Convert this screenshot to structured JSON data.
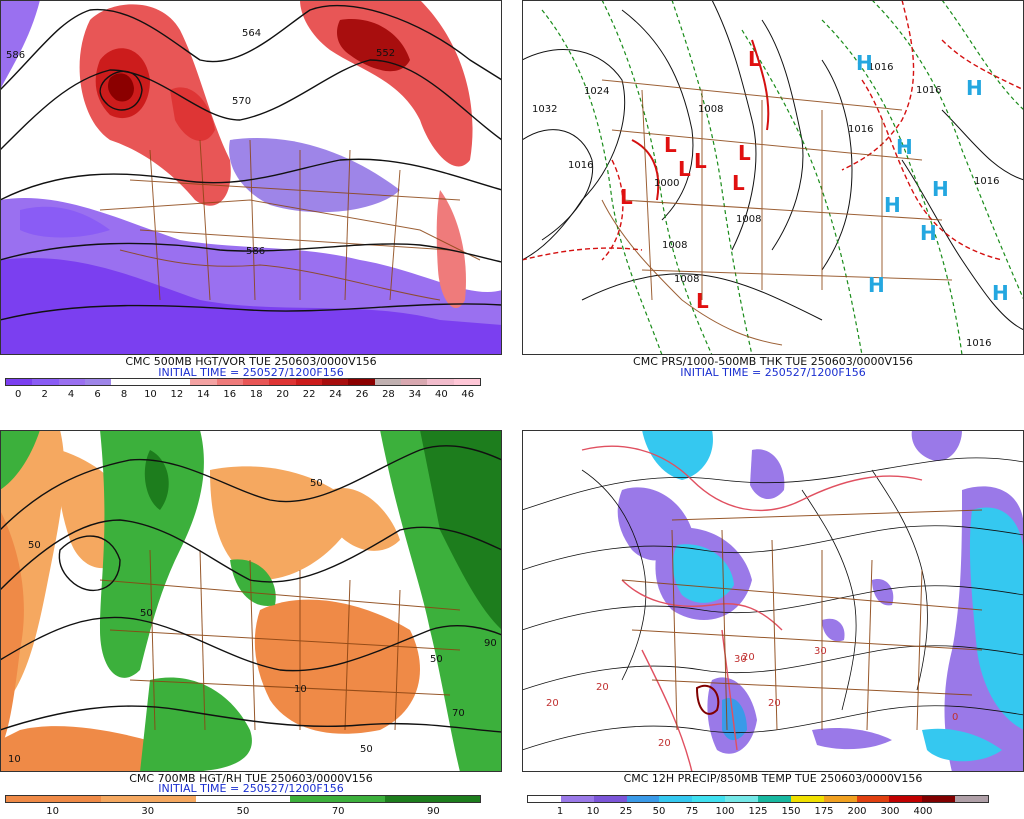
{
  "panels": {
    "p1": {
      "label": "CMC 500MB HGT/VOR TUE 250603/0000V156",
      "init": "INITIAL TIME = 250527/1200F156",
      "contour_labels": [
        "586",
        "564",
        "552",
        "570",
        "586"
      ],
      "colorbar": {
        "colors": [
          "#7b3ff0",
          "#8a5cf5",
          "#9a70f0",
          "#9e85e8",
          "#ffffff",
          "#ffffff",
          "#ffffff",
          "#f4a3a3",
          "#ef7b7b",
          "#e85656",
          "#de3535",
          "#cc1c1c",
          "#a80e0e",
          "#8b0000",
          "#c0b0b0",
          "#d8a8b0",
          "#f2bccc",
          "#ffc7d7"
        ],
        "ticks": [
          "0",
          "2",
          "4",
          "6",
          "8",
          "10",
          "12",
          "14",
          "16",
          "18",
          "20",
          "22",
          "24",
          "26",
          "28",
          "34",
          "40",
          "46"
        ]
      }
    },
    "p2": {
      "label": "CMC PRS/1000-500MB THK TUE 250603/0000V156",
      "init": "INITIAL TIME = 250527/1200F156",
      "pressure_labels": [
        "1032",
        "1024",
        "1016",
        "1008",
        "1000",
        "1008",
        "1008",
        "1016",
        "1016",
        "1016",
        "1016",
        "1016",
        "1008"
      ],
      "H_symbols": [
        "H",
        "H",
        "H",
        "H",
        "H",
        "H",
        "H",
        "H"
      ],
      "L_symbols": [
        "L",
        "L",
        "L",
        "L",
        "L",
        "L",
        "L",
        "L"
      ]
    },
    "p3": {
      "label": "CMC 700MB HGT/RH TUE 250603/0000V156",
      "init": "INITIAL TIME = 250527/1200F156",
      "contour_labels": [
        "50",
        "50",
        "50",
        "90",
        "50",
        "10",
        "70",
        "50",
        "10"
      ],
      "colorbar": {
        "colors": [
          "#ef8a47",
          "#ef8a47",
          "#f5a860",
          "#f5a860",
          "#ffffff",
          "#ffffff",
          "#3cb03c",
          "#3cb03c",
          "#1d7d1d",
          "#1d7d1d"
        ],
        "ticks": [
          "10",
          "30",
          "50",
          "70",
          "90"
        ]
      }
    },
    "p4": {
      "label": "CMC 12H PRECIP/850MB TEMP TUE 250603/0000V156",
      "contour_labels": [
        "20",
        "20",
        "20",
        "20",
        "20",
        "30",
        "30",
        "0"
      ],
      "colorbar": {
        "colors": [
          "#ffffff",
          "#9a79e8",
          "#7b55d8",
          "#3a9ae8",
          "#35c8f0",
          "#40e0f0",
          "#74e8e8",
          "#18b8a0",
          "#f0e000",
          "#f0a020",
          "#e04010",
          "#c00000",
          "#800000",
          "#b0a0a8"
        ],
        "ticks": [
          "1",
          "10",
          "25",
          "50",
          "75",
          "100",
          "125",
          "150",
          "175",
          "200",
          "300",
          "400"
        ]
      }
    }
  }
}
